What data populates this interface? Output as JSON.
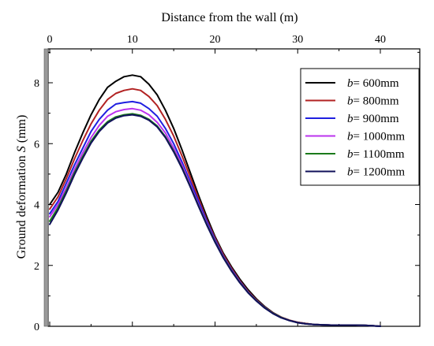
{
  "chart_data": {
    "type": "line",
    "xlabel": "Distance from the wall (m)",
    "ylabel": "Ground deformation S (mm)",
    "ylabel_parts": {
      "prefix": "Ground deformation ",
      "italic": "S",
      "suffix": " (mm)"
    },
    "xlim": [
      0,
      45
    ],
    "ylim": [
      0,
      9
    ],
    "x_axis_position": "top",
    "x_ticks": [
      0,
      10,
      20,
      30,
      40
    ],
    "y_ticks": [
      0,
      2,
      4,
      6,
      8
    ],
    "grid": false,
    "legend_position": "top-right",
    "x": [
      0,
      1,
      2,
      3,
      4,
      5,
      6,
      7,
      8,
      9,
      10,
      11,
      12,
      13,
      14,
      15,
      16,
      17,
      18,
      19,
      20,
      21,
      22,
      23,
      24,
      25,
      26,
      27,
      28,
      29,
      30,
      31,
      32,
      33,
      34,
      35,
      36,
      37,
      38,
      39,
      40
    ],
    "series": [
      {
        "name": "b= 600mm",
        "legend_italic": "b",
        "legend_rest": "= 600mm",
        "color": "#000000",
        "values": [
          4.0,
          4.4,
          5.0,
          5.7,
          6.35,
          6.95,
          7.45,
          7.85,
          8.05,
          8.2,
          8.25,
          8.2,
          7.95,
          7.6,
          7.1,
          6.5,
          5.8,
          5.05,
          4.3,
          3.6,
          2.95,
          2.4,
          1.95,
          1.55,
          1.2,
          0.9,
          0.65,
          0.45,
          0.3,
          0.2,
          0.13,
          0.09,
          0.06,
          0.05,
          0.04,
          0.04,
          0.04,
          0.04,
          0.03,
          0.02,
          0.0
        ]
      },
      {
        "name": "b= 800mm",
        "legend_italic": "b",
        "legend_rest": "= 800mm",
        "color": "#b22222",
        "values": [
          3.85,
          4.25,
          4.85,
          5.5,
          6.1,
          6.65,
          7.1,
          7.45,
          7.65,
          7.75,
          7.8,
          7.75,
          7.55,
          7.25,
          6.8,
          6.25,
          5.6,
          4.9,
          4.2,
          3.5,
          2.9,
          2.35,
          1.9,
          1.5,
          1.15,
          0.87,
          0.63,
          0.44,
          0.3,
          0.2,
          0.13,
          0.09,
          0.06,
          0.05,
          0.04,
          0.04,
          0.04,
          0.04,
          0.03,
          0.02,
          0.0
        ]
      },
      {
        "name": "b= 900mm",
        "legend_italic": "b",
        "legend_rest": "= 900mm",
        "color": "#1f1fe0",
        "values": [
          3.7,
          4.1,
          4.7,
          5.3,
          5.85,
          6.4,
          6.8,
          7.1,
          7.3,
          7.35,
          7.38,
          7.33,
          7.15,
          6.9,
          6.5,
          6.0,
          5.4,
          4.75,
          4.1,
          3.45,
          2.85,
          2.3,
          1.86,
          1.47,
          1.13,
          0.85,
          0.62,
          0.43,
          0.29,
          0.19,
          0.12,
          0.08,
          0.06,
          0.05,
          0.04,
          0.04,
          0.04,
          0.04,
          0.03,
          0.02,
          0.0
        ]
      },
      {
        "name": "b= 1000mm",
        "legend_italic": "b",
        "legend_rest": "= 1000mm",
        "color": "#bb33ee",
        "values": [
          3.6,
          4.0,
          4.55,
          5.15,
          5.7,
          6.2,
          6.6,
          6.9,
          7.05,
          7.12,
          7.15,
          7.1,
          6.95,
          6.7,
          6.35,
          5.85,
          5.3,
          4.65,
          4.0,
          3.38,
          2.8,
          2.27,
          1.83,
          1.45,
          1.12,
          0.84,
          0.61,
          0.43,
          0.29,
          0.19,
          0.12,
          0.08,
          0.06,
          0.05,
          0.04,
          0.04,
          0.04,
          0.04,
          0.03,
          0.02,
          0.0
        ]
      },
      {
        "name": "b= 1100mm",
        "legend_italic": "b",
        "legend_rest": "= 1100mm",
        "color": "#1b7a1b",
        "values": [
          3.45,
          3.9,
          4.45,
          5.05,
          5.58,
          6.08,
          6.45,
          6.72,
          6.88,
          6.95,
          6.98,
          6.93,
          6.8,
          6.58,
          6.23,
          5.76,
          5.22,
          4.6,
          3.96,
          3.35,
          2.78,
          2.26,
          1.82,
          1.44,
          1.11,
          0.84,
          0.61,
          0.43,
          0.29,
          0.19,
          0.12,
          0.08,
          0.06,
          0.05,
          0.04,
          0.04,
          0.04,
          0.04,
          0.03,
          0.02,
          0.0
        ]
      },
      {
        "name": "b= 1200mm",
        "legend_italic": "b",
        "legend_rest": "= 1200mm",
        "color": "#10105a",
        "values": [
          3.35,
          3.82,
          4.38,
          4.98,
          5.52,
          6.02,
          6.4,
          6.68,
          6.84,
          6.92,
          6.95,
          6.9,
          6.77,
          6.55,
          6.2,
          5.73,
          5.19,
          4.58,
          3.94,
          3.33,
          2.76,
          2.25,
          1.81,
          1.43,
          1.1,
          0.83,
          0.6,
          0.42,
          0.28,
          0.19,
          0.12,
          0.08,
          0.06,
          0.05,
          0.04,
          0.04,
          0.04,
          0.04,
          0.03,
          0.02,
          0.0
        ]
      }
    ]
  }
}
